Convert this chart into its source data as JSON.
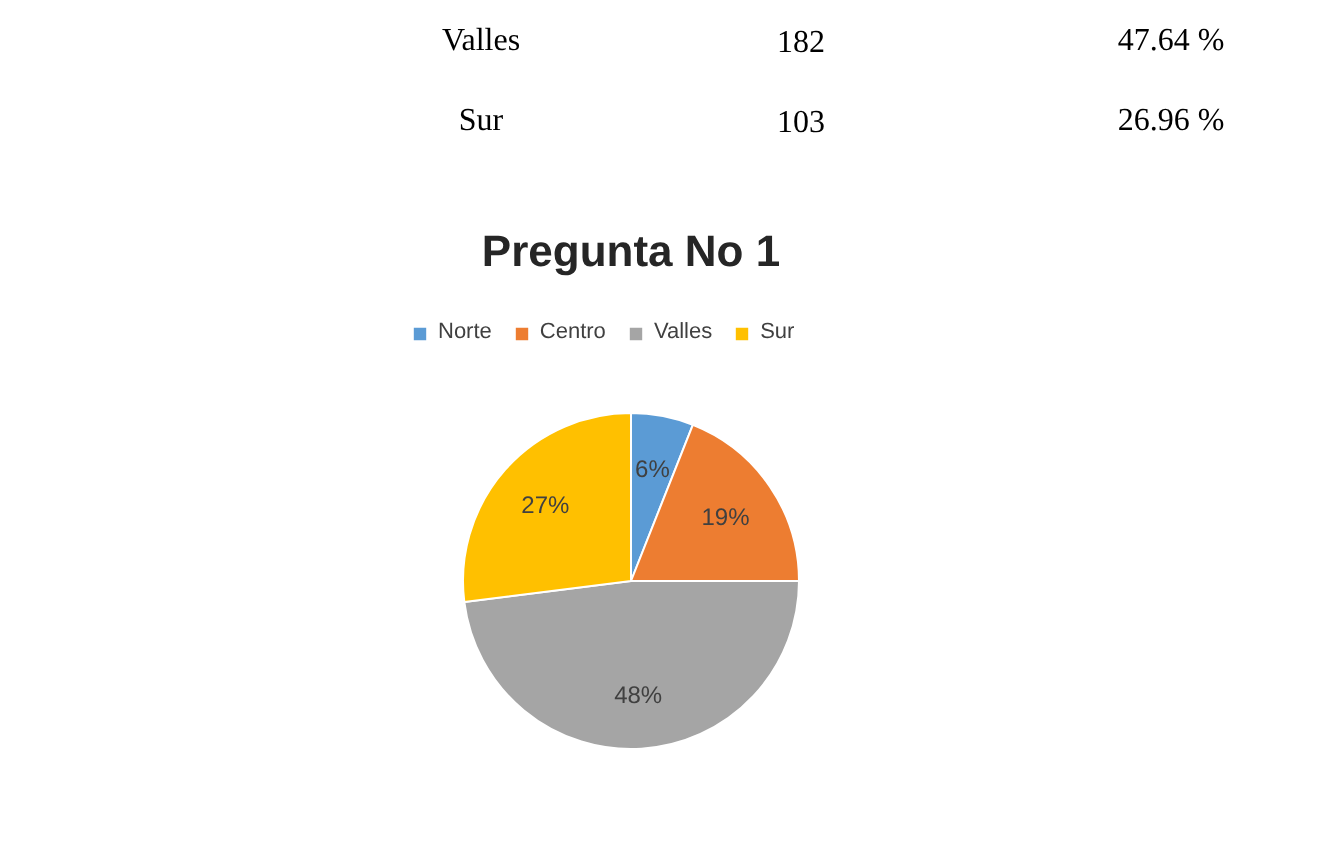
{
  "chart_data": {
    "type": "pie",
    "title": "Pregunta No 1",
    "categories": [
      "Norte",
      "Centro",
      "Valles",
      "Sur"
    ],
    "values": [
      6,
      19,
      48,
      27
    ],
    "colors": [
      "#5b9bd5",
      "#ed7d31",
      "#a5a5a5",
      "#ffc000"
    ],
    "value_labels": [
      "6%",
      "19%",
      "48%",
      "27%"
    ],
    "legend": "top",
    "annotations": [
      "Valles",
      "182",
      "47.64 %",
      "Sur",
      "103",
      "26.96 %"
    ]
  }
}
